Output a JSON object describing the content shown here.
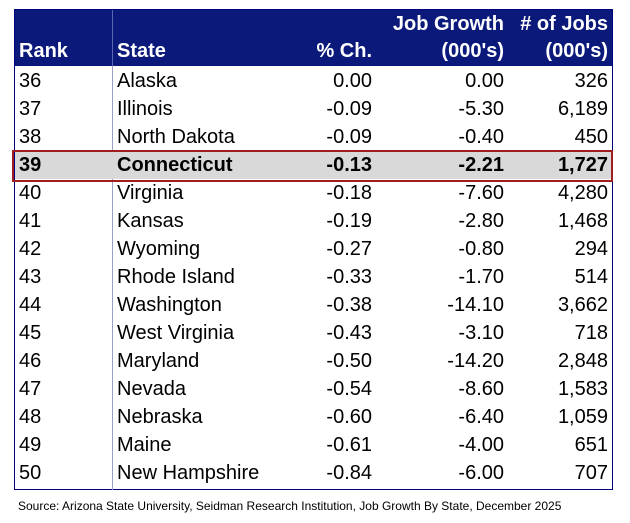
{
  "chart_data": {
    "type": "table",
    "columns": {
      "rank": "Rank",
      "state": "State",
      "pct": "% Ch.",
      "growth_top": "Job Growth",
      "growth_bottom": "(000's)",
      "jobs_top": "# of Jobs",
      "jobs_bottom": "(000's)"
    },
    "rows": [
      {
        "rank": "36",
        "state": "Alaska",
        "pct": "0.00",
        "growth": "0.00",
        "jobs": "326"
      },
      {
        "rank": "37",
        "state": "Illinois",
        "pct": "-0.09",
        "growth": "-5.30",
        "jobs": "6,189"
      },
      {
        "rank": "38",
        "state": "North Dakota",
        "pct": "-0.09",
        "growth": "-0.40",
        "jobs": "450"
      },
      {
        "rank": "39",
        "state": "Connecticut",
        "pct": "-0.13",
        "growth": "-2.21",
        "jobs": "1,727",
        "highlight": true
      },
      {
        "rank": "40",
        "state": "Virginia",
        "pct": "-0.18",
        "growth": "-7.60",
        "jobs": "4,280"
      },
      {
        "rank": "41",
        "state": "Kansas",
        "pct": "-0.19",
        "growth": "-2.80",
        "jobs": "1,468"
      },
      {
        "rank": "42",
        "state": "Wyoming",
        "pct": "-0.27",
        "growth": "-0.80",
        "jobs": "294"
      },
      {
        "rank": "43",
        "state": "Rhode Island",
        "pct": "-0.33",
        "growth": "-1.70",
        "jobs": "514"
      },
      {
        "rank": "44",
        "state": "Washington",
        "pct": "-0.38",
        "growth": "-14.10",
        "jobs": "3,662"
      },
      {
        "rank": "45",
        "state": "West Virginia",
        "pct": "-0.43",
        "growth": "-3.10",
        "jobs": "718"
      },
      {
        "rank": "46",
        "state": "Maryland",
        "pct": "-0.50",
        "growth": "-14.20",
        "jobs": "2,848"
      },
      {
        "rank": "47",
        "state": "Nevada",
        "pct": "-0.54",
        "growth": "-8.60",
        "jobs": "1,583"
      },
      {
        "rank": "48",
        "state": "Nebraska",
        "pct": "-0.60",
        "growth": "-6.40",
        "jobs": "1,059"
      },
      {
        "rank": "49",
        "state": "Maine",
        "pct": "-0.61",
        "growth": "-4.00",
        "jobs": "651"
      },
      {
        "rank": "50",
        "state": "New Hampshire",
        "pct": "-0.84",
        "growth": "-6.00",
        "jobs": "707"
      }
    ],
    "source": "Source: Arizona State University, Seidman Research Institution, Job Growth By State, December 2025",
    "colors": {
      "header_bg": "#0b1a7a",
      "highlight_bg": "#d9d9d9",
      "highlight_border": "#a01e1e"
    }
  }
}
